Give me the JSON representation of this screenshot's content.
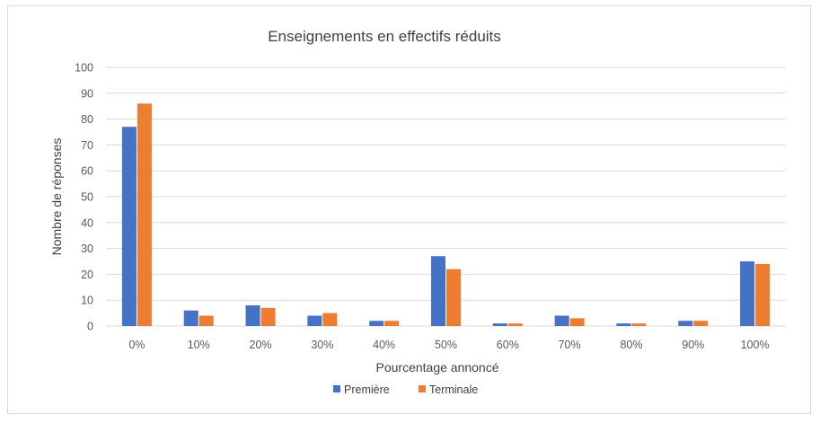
{
  "colors": {
    "premiere": "#4472c4",
    "terminale": "#ed7d31"
  },
  "chart_data": {
    "type": "bar",
    "title": "Enseignements en effectifs réduits",
    "xlabel": "Pourcentage annoncé",
    "ylabel": "Nombre de réponses",
    "ylim": [
      0,
      100
    ],
    "yticks": [
      "0",
      "10",
      "20",
      "30",
      "40",
      "50",
      "60",
      "70",
      "80",
      "90",
      "100"
    ],
    "categories": [
      "0%",
      "10%",
      "20%",
      "30%",
      "40%",
      "50%",
      "60%",
      "70%",
      "80%",
      "90%",
      "100%"
    ],
    "series": [
      {
        "name": "Première",
        "values": [
          77,
          6,
          8,
          4,
          2,
          27,
          1,
          4,
          1,
          2,
          25
        ]
      },
      {
        "name": "Terminale",
        "values": [
          86,
          4,
          7,
          5,
          2,
          22,
          1,
          3,
          1,
          2,
          24
        ]
      }
    ],
    "grid": true,
    "legend": "bottom"
  }
}
